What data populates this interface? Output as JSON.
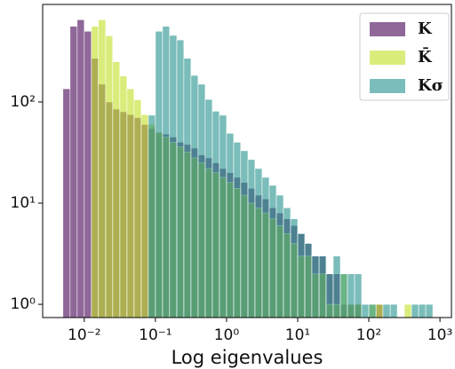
{
  "chart_data": {
    "type": "histogram",
    "xlabel": "Log eigenvalues",
    "xscale": "log",
    "yscale": "log",
    "legend": "upper right",
    "bins": [
      0.00501,
      0.00631,
      0.00794,
      0.01,
      0.0126,
      0.0158,
      0.02,
      0.0251,
      0.0316,
      0.0398,
      0.0501,
      0.0631,
      0.0794,
      0.1,
      0.126,
      0.158,
      0.2,
      0.251,
      0.316,
      0.398,
      0.501,
      0.631,
      0.794,
      1,
      1.26,
      1.58,
      2,
      2.51,
      3.16,
      3.98,
      5.01,
      6.31,
      7.94,
      10,
      12.6,
      15.8,
      20,
      25.1,
      31.6,
      39.8,
      50.1,
      63.1,
      79.4,
      100,
      126,
      158,
      200,
      251,
      316,
      398,
      501,
      631,
      794
    ],
    "series": [
      {
        "name": "K",
        "color": "#440154",
        "values": [
          135,
          560,
          650,
          500,
          270,
          150,
          100,
          85,
          80,
          75,
          70,
          60,
          55,
          50,
          48,
          45,
          40,
          38,
          35,
          30,
          28,
          25,
          22,
          20,
          18,
          16,
          14,
          12,
          11,
          9,
          8,
          7,
          6,
          5,
          4,
          3,
          3,
          2,
          2,
          1,
          1,
          1,
          0,
          0,
          1,
          0,
          0,
          0,
          0,
          0,
          0,
          0
        ]
      },
      {
        "name": "K̄",
        "color": "#c2df23",
        "values": [
          0,
          0,
          0,
          0,
          560,
          650,
          450,
          250,
          180,
          135,
          105,
          75,
          60,
          50,
          45,
          40,
          36,
          32,
          28,
          25,
          22,
          20,
          18,
          16,
          14,
          12,
          10,
          9,
          8,
          7,
          6,
          5,
          4,
          3,
          3,
          2,
          2,
          1,
          1,
          2,
          1,
          1,
          0,
          1,
          1,
          0,
          0,
          0,
          1,
          0,
          0,
          0
        ]
      },
      {
        "name": "Kσ",
        "color": "#21918c",
        "values": [
          0,
          0,
          0,
          0,
          0,
          0,
          0,
          0,
          0,
          0,
          0,
          0,
          74,
          500,
          560,
          455,
          410,
          270,
          183,
          150,
          106,
          81,
          74,
          49,
          40,
          33,
          27,
          22,
          18,
          15,
          12,
          9,
          7,
          5,
          4,
          3,
          3,
          2,
          3,
          2,
          2,
          2,
          1,
          1,
          0,
          1,
          1,
          0,
          0,
          1,
          1,
          1
        ]
      }
    ],
    "xlim": [
      0.0026,
      1450
    ],
    "ylim": [
      0.74,
      920
    ],
    "xticks": [
      {
        "value": 0.01,
        "label": "10⁻²"
      },
      {
        "value": 0.1,
        "label": "10⁻¹"
      },
      {
        "value": 1,
        "label": "10⁰"
      },
      {
        "value": 10,
        "label": "10¹"
      },
      {
        "value": 100,
        "label": "10²"
      },
      {
        "value": 1000,
        "label": "10³"
      }
    ],
    "yticks": [
      {
        "value": 1,
        "label": "10⁰"
      },
      {
        "value": 10,
        "label": "10¹"
      },
      {
        "value": 100,
        "label": "10²"
      }
    ]
  }
}
